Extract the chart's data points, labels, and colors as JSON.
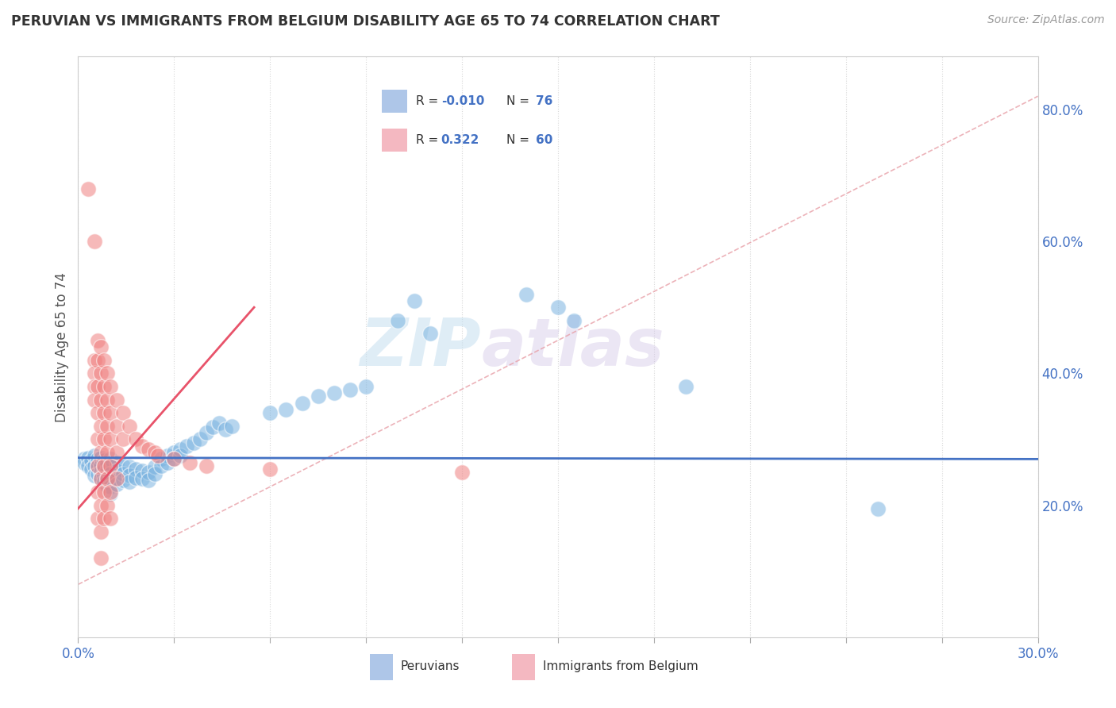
{
  "title": "PERUVIAN VS IMMIGRANTS FROM BELGIUM DISABILITY AGE 65 TO 74 CORRELATION CHART",
  "source": "Source: ZipAtlas.com",
  "ylabel": "Disability Age 65 to 74",
  "ylabel_right_vals": [
    0.2,
    0.4,
    0.6,
    0.8
  ],
  "xmin": 0.0,
  "xmax": 0.3,
  "ymin": 0.0,
  "ymax": 0.88,
  "peruvians_scatter": [
    [
      0.002,
      0.27
    ],
    [
      0.002,
      0.265
    ],
    [
      0.003,
      0.272
    ],
    [
      0.003,
      0.26
    ],
    [
      0.004,
      0.268
    ],
    [
      0.004,
      0.255
    ],
    [
      0.005,
      0.275
    ],
    [
      0.005,
      0.26
    ],
    [
      0.005,
      0.245
    ],
    [
      0.006,
      0.27
    ],
    [
      0.006,
      0.258
    ],
    [
      0.006,
      0.248
    ],
    [
      0.007,
      0.272
    ],
    [
      0.007,
      0.26
    ],
    [
      0.007,
      0.25
    ],
    [
      0.007,
      0.24
    ],
    [
      0.008,
      0.268
    ],
    [
      0.008,
      0.255
    ],
    [
      0.008,
      0.245
    ],
    [
      0.008,
      0.235
    ],
    [
      0.009,
      0.265
    ],
    [
      0.009,
      0.252
    ],
    [
      0.009,
      0.24
    ],
    [
      0.009,
      0.23
    ],
    [
      0.01,
      0.27
    ],
    [
      0.01,
      0.258
    ],
    [
      0.01,
      0.248
    ],
    [
      0.01,
      0.238
    ],
    [
      0.01,
      0.228
    ],
    [
      0.01,
      0.218
    ],
    [
      0.012,
      0.265
    ],
    [
      0.012,
      0.252
    ],
    [
      0.012,
      0.242
    ],
    [
      0.012,
      0.232
    ],
    [
      0.014,
      0.26
    ],
    [
      0.014,
      0.248
    ],
    [
      0.014,
      0.238
    ],
    [
      0.016,
      0.258
    ],
    [
      0.016,
      0.245
    ],
    [
      0.016,
      0.235
    ],
    [
      0.018,
      0.255
    ],
    [
      0.018,
      0.242
    ],
    [
      0.02,
      0.252
    ],
    [
      0.02,
      0.24
    ],
    [
      0.022,
      0.25
    ],
    [
      0.022,
      0.238
    ],
    [
      0.024,
      0.258
    ],
    [
      0.024,
      0.248
    ],
    [
      0.026,
      0.27
    ],
    [
      0.026,
      0.26
    ],
    [
      0.028,
      0.275
    ],
    [
      0.028,
      0.265
    ],
    [
      0.03,
      0.28
    ],
    [
      0.03,
      0.27
    ],
    [
      0.032,
      0.285
    ],
    [
      0.032,
      0.275
    ],
    [
      0.034,
      0.29
    ],
    [
      0.036,
      0.295
    ],
    [
      0.038,
      0.3
    ],
    [
      0.04,
      0.31
    ],
    [
      0.042,
      0.318
    ],
    [
      0.044,
      0.325
    ],
    [
      0.046,
      0.315
    ],
    [
      0.048,
      0.32
    ],
    [
      0.06,
      0.34
    ],
    [
      0.065,
      0.345
    ],
    [
      0.07,
      0.355
    ],
    [
      0.075,
      0.365
    ],
    [
      0.08,
      0.37
    ],
    [
      0.085,
      0.375
    ],
    [
      0.09,
      0.38
    ],
    [
      0.1,
      0.48
    ],
    [
      0.105,
      0.51
    ],
    [
      0.11,
      0.46
    ],
    [
      0.14,
      0.52
    ],
    [
      0.15,
      0.5
    ],
    [
      0.155,
      0.48
    ],
    [
      0.19,
      0.38
    ],
    [
      0.25,
      0.195
    ]
  ],
  "belgium_scatter": [
    [
      0.003,
      0.68
    ],
    [
      0.005,
      0.6
    ],
    [
      0.005,
      0.42
    ],
    [
      0.005,
      0.4
    ],
    [
      0.005,
      0.38
    ],
    [
      0.005,
      0.36
    ],
    [
      0.006,
      0.45
    ],
    [
      0.006,
      0.42
    ],
    [
      0.006,
      0.38
    ],
    [
      0.006,
      0.34
    ],
    [
      0.006,
      0.3
    ],
    [
      0.006,
      0.26
    ],
    [
      0.006,
      0.22
    ],
    [
      0.006,
      0.18
    ],
    [
      0.007,
      0.44
    ],
    [
      0.007,
      0.4
    ],
    [
      0.007,
      0.36
    ],
    [
      0.007,
      0.32
    ],
    [
      0.007,
      0.28
    ],
    [
      0.007,
      0.24
    ],
    [
      0.007,
      0.2
    ],
    [
      0.007,
      0.16
    ],
    [
      0.007,
      0.12
    ],
    [
      0.008,
      0.42
    ],
    [
      0.008,
      0.38
    ],
    [
      0.008,
      0.34
    ],
    [
      0.008,
      0.3
    ],
    [
      0.008,
      0.26
    ],
    [
      0.008,
      0.22
    ],
    [
      0.008,
      0.18
    ],
    [
      0.009,
      0.4
    ],
    [
      0.009,
      0.36
    ],
    [
      0.009,
      0.32
    ],
    [
      0.009,
      0.28
    ],
    [
      0.009,
      0.24
    ],
    [
      0.009,
      0.2
    ],
    [
      0.01,
      0.38
    ],
    [
      0.01,
      0.34
    ],
    [
      0.01,
      0.3
    ],
    [
      0.01,
      0.26
    ],
    [
      0.01,
      0.22
    ],
    [
      0.01,
      0.18
    ],
    [
      0.012,
      0.36
    ],
    [
      0.012,
      0.32
    ],
    [
      0.012,
      0.28
    ],
    [
      0.012,
      0.24
    ],
    [
      0.014,
      0.34
    ],
    [
      0.014,
      0.3
    ],
    [
      0.016,
      0.32
    ],
    [
      0.018,
      0.3
    ],
    [
      0.02,
      0.29
    ],
    [
      0.022,
      0.285
    ],
    [
      0.024,
      0.28
    ],
    [
      0.025,
      0.275
    ],
    [
      0.03,
      0.27
    ],
    [
      0.035,
      0.265
    ],
    [
      0.04,
      0.26
    ],
    [
      0.06,
      0.255
    ],
    [
      0.12,
      0.25
    ]
  ],
  "scatter_color_peru": "#7ab3e0",
  "scatter_color_belgium": "#f08080",
  "background_color": "#ffffff",
  "grid_color": "#d8d8d8",
  "watermark_zip": "ZIP",
  "watermark_atlas": "atlas",
  "trendline_peru_color": "#4472c4",
  "trendline_belgium_color": "#e8536a",
  "trendline_diag_color": "#e8a0a8"
}
